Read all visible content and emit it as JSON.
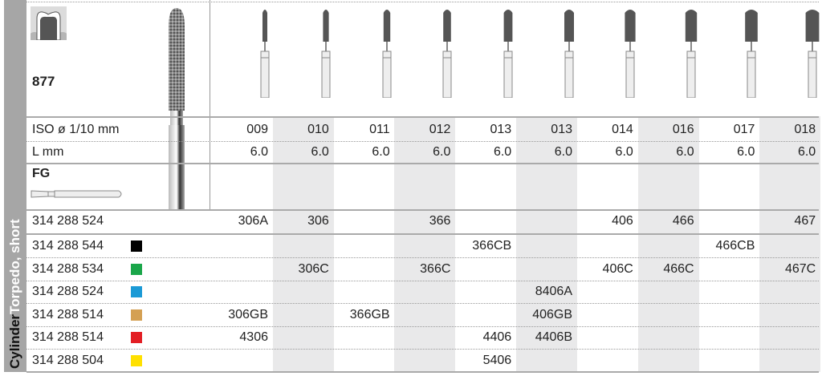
{
  "product": {
    "number": "877",
    "shank": "FG",
    "category_bold": "Cylinder",
    "category": "Torpedo, short"
  },
  "labels": {
    "iso": "ISO ø 1/10 mm",
    "length": "L mm"
  },
  "columns": {
    "iso": [
      "009",
      "010",
      "011",
      "012",
      "013",
      "013",
      "014",
      "016",
      "017",
      "018"
    ],
    "length": [
      "6.0",
      "6.0",
      "6.0",
      "6.0",
      "6.0",
      "6.0",
      "6.0",
      "6.0",
      "6.0",
      "6.0"
    ],
    "shaded": [
      false,
      true,
      false,
      true,
      false,
      true,
      false,
      true,
      false,
      true
    ]
  },
  "rows": [
    {
      "code": "314 288 524",
      "swatch": null,
      "values": [
        "306A",
        "306",
        "",
        "366",
        "",
        "",
        "406",
        "466",
        "",
        "467"
      ]
    },
    {
      "code": "314 288 544",
      "swatch": "#000000",
      "values": [
        "",
        "",
        "",
        "",
        "366CB",
        "",
        "",
        "",
        "466CB",
        ""
      ]
    },
    {
      "code": "314 288 534",
      "swatch": "#1aa64a",
      "values": [
        "",
        "306C",
        "",
        "366C",
        "",
        "",
        "406C",
        "466C",
        "",
        "467C"
      ]
    },
    {
      "code": "314 288 524",
      "swatch": "#1b9ad6",
      "values": [
        "",
        "",
        "",
        "",
        "",
        "8406A",
        "",
        "",
        "",
        ""
      ]
    },
    {
      "code": "314 288 514",
      "swatch": "#d4a053",
      "values": [
        "306GB",
        "",
        "366GB",
        "",
        "",
        "406GB",
        "",
        "",
        "",
        ""
      ]
    },
    {
      "code": "314 288 514",
      "swatch": "#e31e24",
      "values": [
        "4306",
        "",
        "",
        "",
        "4406",
        "4406B",
        "",
        "",
        "",
        ""
      ]
    },
    {
      "code": "314 288 504",
      "swatch": "#ffe000",
      "values": [
        "",
        "",
        "",
        "",
        "5406",
        "",
        "",
        "",
        "",
        ""
      ]
    }
  ]
}
